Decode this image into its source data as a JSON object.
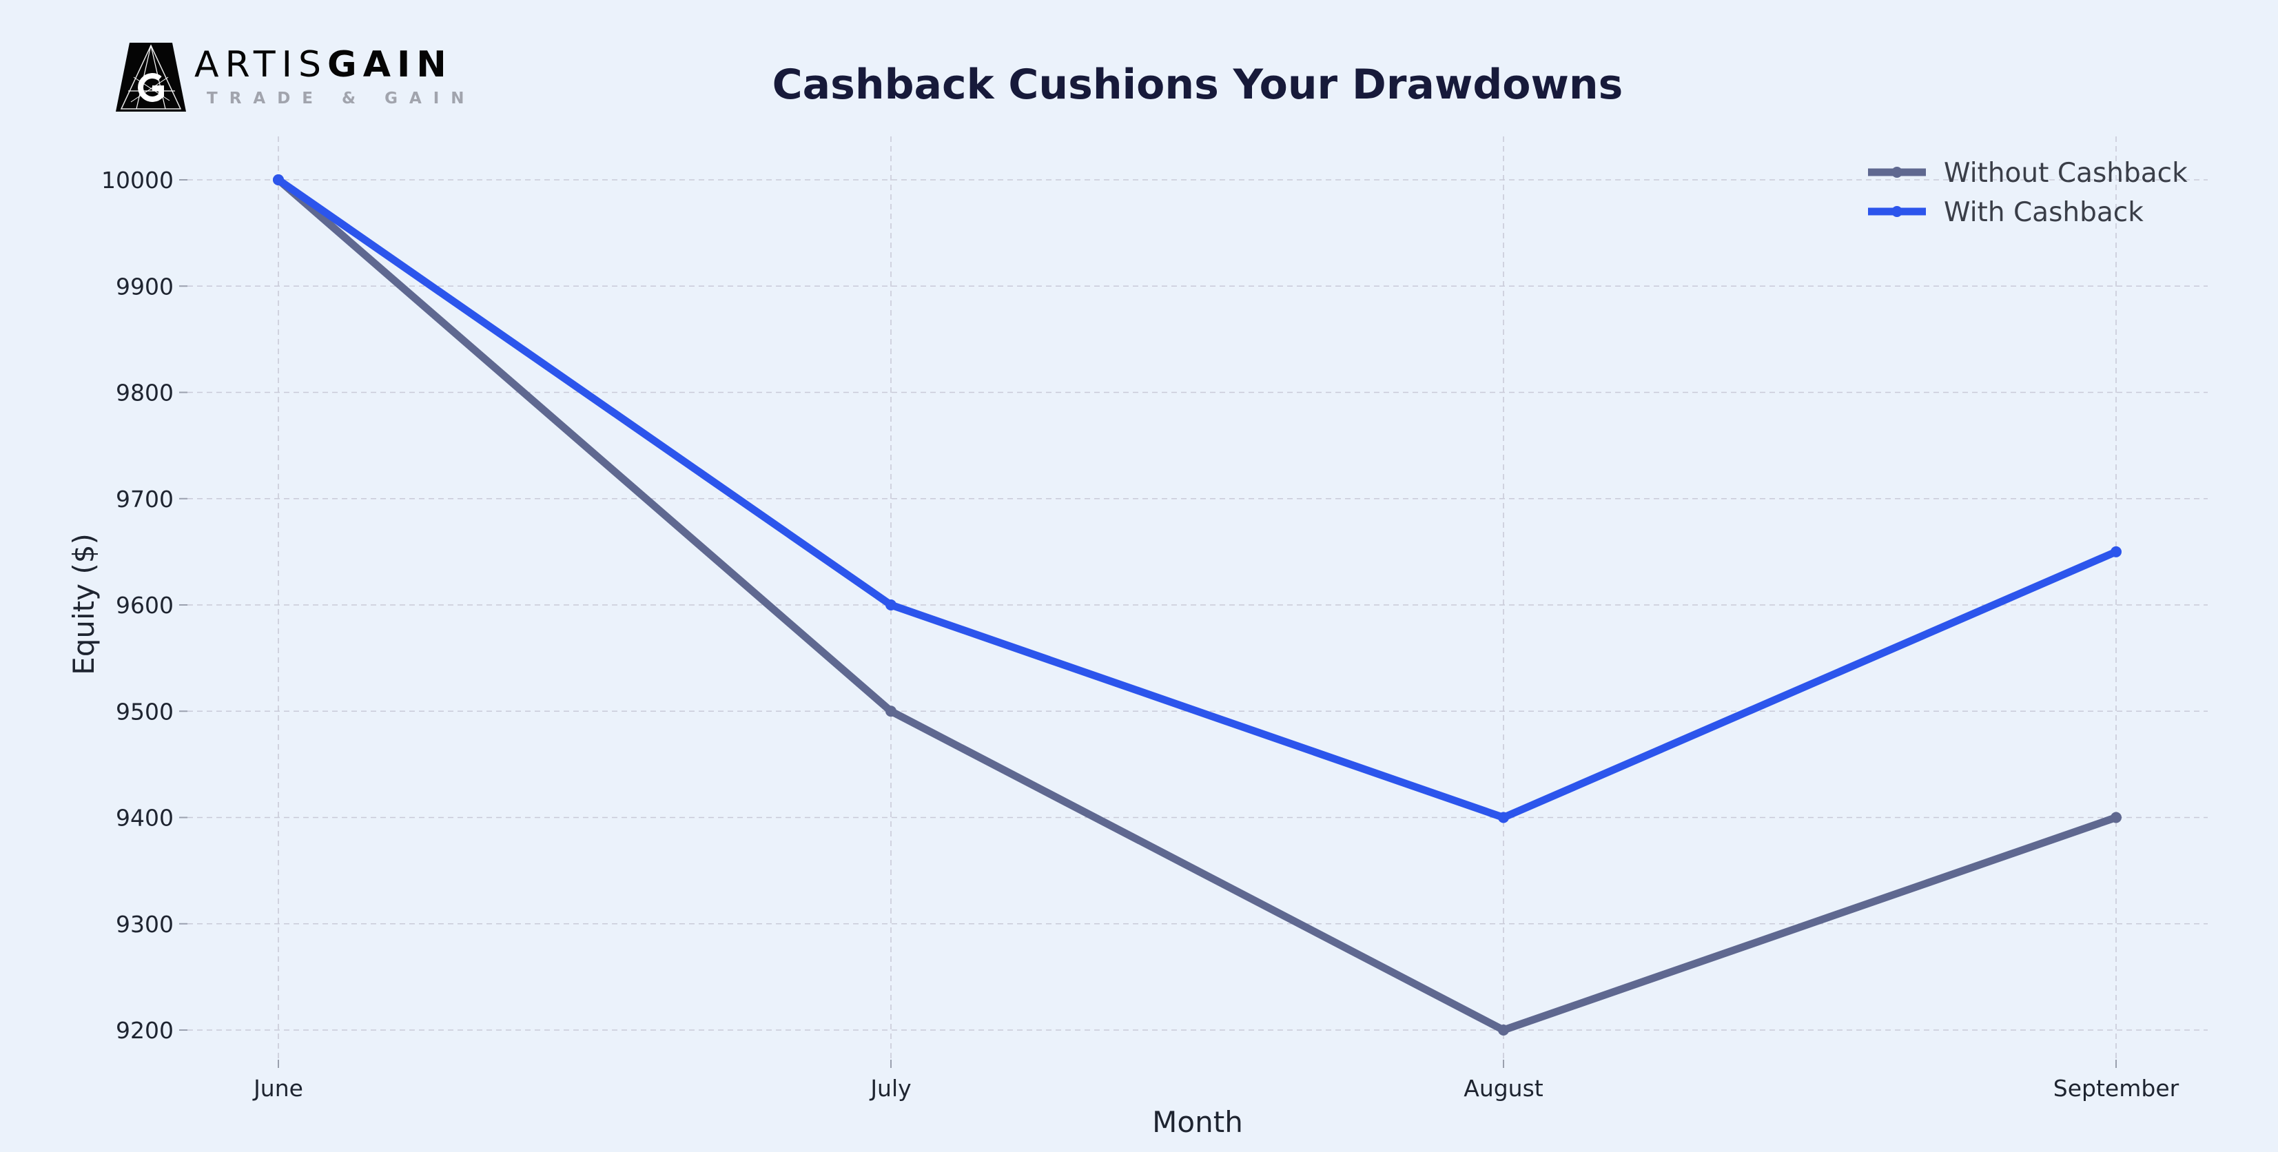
{
  "logo": {
    "wordmark_light": "ARTIS",
    "wordmark_bold": "GAIN",
    "tagline": "TRADE & GAIN"
  },
  "chart_data": {
    "type": "line",
    "title": "Cashback Cushions Your Drawdowns",
    "xlabel": "Month",
    "ylabel": "Equity ($)",
    "categories": [
      "June",
      "July",
      "August",
      "September"
    ],
    "ylim": [
      9160,
      10040
    ],
    "yticks": [
      9200,
      9300,
      9400,
      9500,
      9600,
      9700,
      9800,
      9900,
      10000
    ],
    "grid": true,
    "legend_position": "top-right",
    "series": [
      {
        "name": "Without Cashback",
        "values": [
          10000,
          9500,
          9200,
          9400
        ],
        "color": "#5f6890"
      },
      {
        "name": "With Cashback",
        "values": [
          10000,
          9600,
          9400,
          9650
        ],
        "color": "#2c55ec"
      }
    ],
    "colors": {
      "title": "#171a3a",
      "text": "#1e2430",
      "grid": "#c9cad8",
      "legend_text": "#3a3e48"
    }
  }
}
